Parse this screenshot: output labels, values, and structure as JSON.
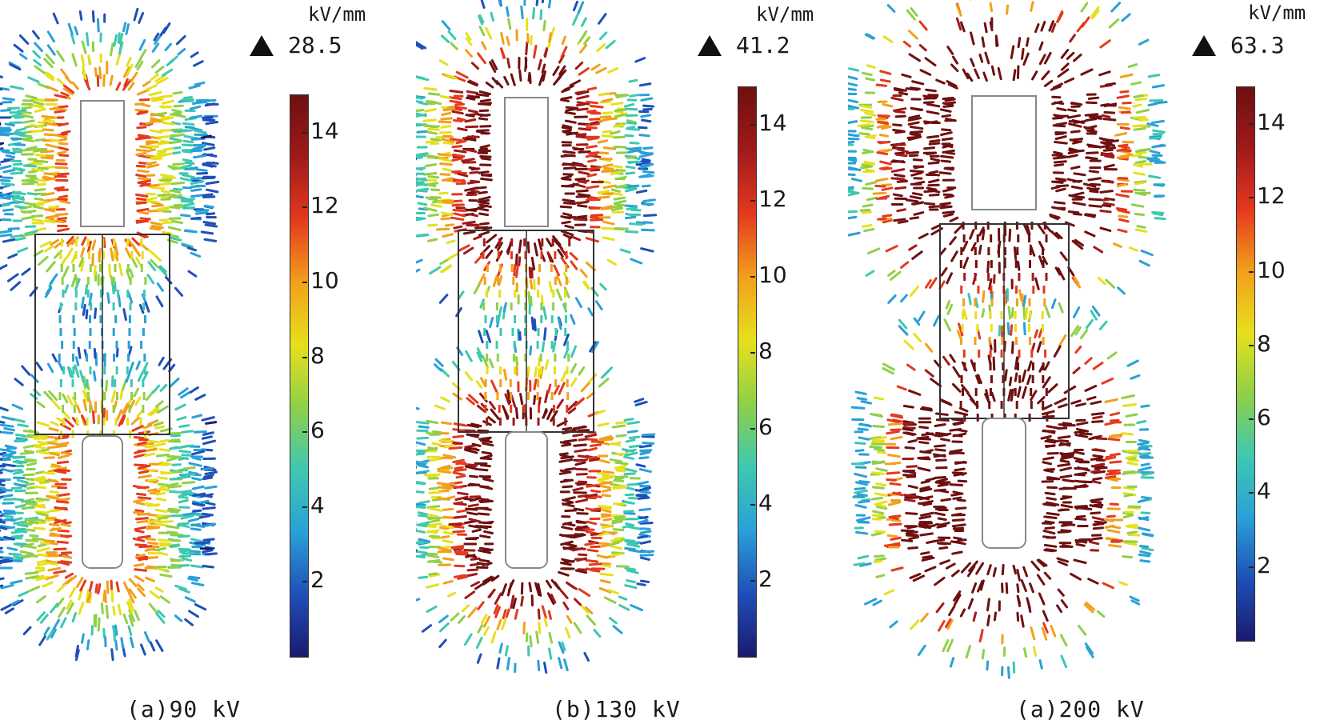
{
  "colormap": [
    "#1a1a6e",
    "#1f4fb8",
    "#2aa0d8",
    "#3ec8b0",
    "#8fd048",
    "#e6e01c",
    "#f2a01c",
    "#e43a1e",
    "#a01a1a",
    "#6e1010"
  ],
  "panels": [
    {
      "caption": "(a)90 kV",
      "unit": "kV/mm",
      "max_value": "28.5",
      "ticks": [
        "2",
        "4",
        "6",
        "8",
        "10",
        "12",
        "14"
      ],
      "intensity": 1.0
    },
    {
      "caption": "(b)130 kV",
      "unit": "kV/mm",
      "max_value": "41.2",
      "ticks": [
        "2",
        "4",
        "6",
        "8",
        "10",
        "12",
        "14"
      ],
      "intensity": 1.5
    },
    {
      "caption": "(a)200 kV",
      "unit": "kV/mm",
      "max_value": "63.3",
      "ticks": [
        "2",
        "4",
        "6",
        "8",
        "10",
        "12",
        "14"
      ],
      "intensity": 2.3
    }
  ]
}
